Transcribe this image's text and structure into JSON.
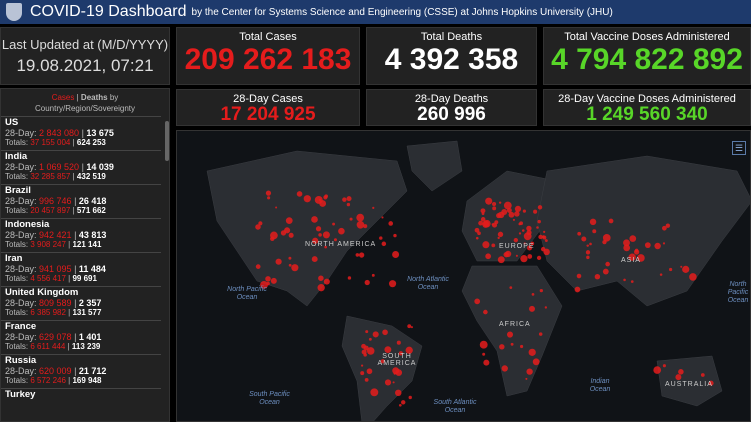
{
  "header": {
    "title": "COVID-19 Dashboard",
    "subtitle": "by the Center for Systems Science and Engineering (CSSE) at Johns Hopkins University (JHU)"
  },
  "updated": {
    "label": "Last Updated at (M/D/YYYY)",
    "value": "19.08.2021, 07:21"
  },
  "cards": {
    "total_cases": {
      "label": "Total Cases",
      "value": "209 262 183",
      "color": "#e51c1c"
    },
    "total_deaths": {
      "label": "Total Deaths",
      "value": "4 392 358",
      "color": "#ffffff"
    },
    "total_vaccine": {
      "label": "Total Vaccine Doses Administered",
      "value": "4 794 822 892",
      "color": "#58d628"
    },
    "cases_28": {
      "label": "28-Day Cases",
      "value": "17 204 925"
    },
    "deaths_28": {
      "label": "28-Day Deaths",
      "value": "260 996"
    },
    "vaccine_28": {
      "label": "28-Day Vaccine Doses Administered",
      "value": "1 249 560 340"
    }
  },
  "list": {
    "cases": "Cases",
    "sep": " | ",
    "deaths": "Deaths",
    "by": " by",
    "sub": "Country/Region/Sovereignty",
    "day_label": "28-Day: ",
    "tot_label": "Totals: ",
    "items": [
      {
        "name": "US",
        "c28": "2 843 080",
        "d28": "13 675",
        "ct": "37 155 004",
        "dt": "624 253"
      },
      {
        "name": "India",
        "c28": "1 069 520",
        "d28": "14 039",
        "ct": "32 285 857",
        "dt": "432 519"
      },
      {
        "name": "Brazil",
        "c28": "996 746",
        "d28": "26 418",
        "ct": "20 457 897",
        "dt": "571 662"
      },
      {
        "name": "Indonesia",
        "c28": "942 421",
        "d28": "43 813",
        "ct": "3 908 247",
        "dt": "121 141"
      },
      {
        "name": "Iran",
        "c28": "941 095",
        "d28": "11 484",
        "ct": "4 556 417",
        "dt": "99 691"
      },
      {
        "name": "United Kingdom",
        "c28": "809 589",
        "d28": "2 357",
        "ct": "6 385 982",
        "dt": "131 577"
      },
      {
        "name": "France",
        "c28": "629 078",
        "d28": "1 401",
        "ct": "6 611 444",
        "dt": "113 239"
      },
      {
        "name": "Russia",
        "c28": "620 009",
        "d28": "21 712",
        "ct": "6 572 246",
        "dt": "169 948"
      },
      {
        "name": "Turkey",
        "c28": "",
        "d28": "",
        "ct": "",
        "dt": ""
      }
    ]
  },
  "map": {
    "labels": [
      "NORTH AMERICA",
      "EUROPE",
      "ASIA",
      "AFRICA",
      "SOUTH AMERICA",
      "AUSTRALIA"
    ],
    "oceans": [
      "North Pacific Ocean",
      "North Atlantic Ocean",
      "South Pacific Ocean",
      "South Atlantic Ocean",
      "Indian Ocean",
      "North Pacific Ocean"
    ],
    "legend_icon": "list-icon"
  }
}
